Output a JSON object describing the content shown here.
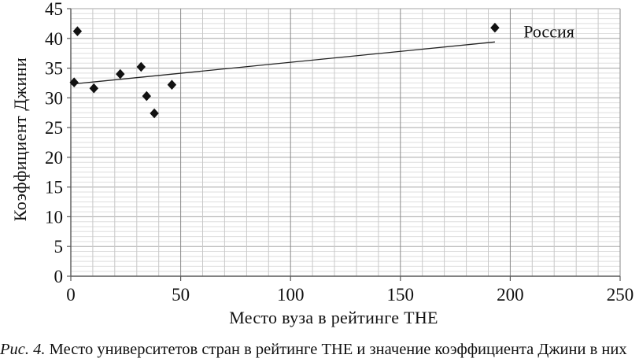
{
  "figure": {
    "caption_prefix": "Рис. 4.",
    "caption_text": " Место университетов стран в рейтинге THE и значение коэффициента Джини в них"
  },
  "chart_data": {
    "type": "scatter",
    "title": "",
    "xlabel": "Место вуза в рейтинге THE",
    "ylabel": "Коэффициент Джини",
    "xlim": [
      0,
      250
    ],
    "ylim": [
      0,
      45
    ],
    "x_ticks": [
      0,
      50,
      100,
      150,
      200,
      250
    ],
    "y_ticks": [
      0,
      5,
      10,
      15,
      20,
      25,
      30,
      35,
      40,
      45
    ],
    "x_minor_step": 10,
    "y_minor_divisions_per_major": 6,
    "grid": "on",
    "legend": "none",
    "series": [
      {
        "marker": "diamond",
        "points": [
          {
            "x": 3,
            "y": 41.2
          },
          {
            "x": 1.5,
            "y": 32.6
          },
          {
            "x": 10.5,
            "y": 31.6
          },
          {
            "x": 22.5,
            "y": 34.0
          },
          {
            "x": 32,
            "y": 35.2
          },
          {
            "x": 34.5,
            "y": 30.3
          },
          {
            "x": 38,
            "y": 27.4
          },
          {
            "x": 46,
            "y": 32.2
          },
          {
            "x": 193,
            "y": 41.8
          }
        ]
      }
    ],
    "trendline": {
      "x1": 0,
      "y1": 32.3,
      "x2": 193,
      "y2": 39.4
    },
    "annotations": [
      {
        "label": "Россия",
        "x": 206,
        "y": 41.2
      }
    ],
    "colors": {
      "marker": "#111111",
      "trendline": "#222222",
      "axis": "#595959",
      "tick": "#595959",
      "grid_h_minor": "#dedede",
      "grid_h_major": "#a6a6a6",
      "grid_v_minor": "#c8c8c8",
      "grid_v_major": "#8a8a8a",
      "text": "#111111"
    }
  }
}
